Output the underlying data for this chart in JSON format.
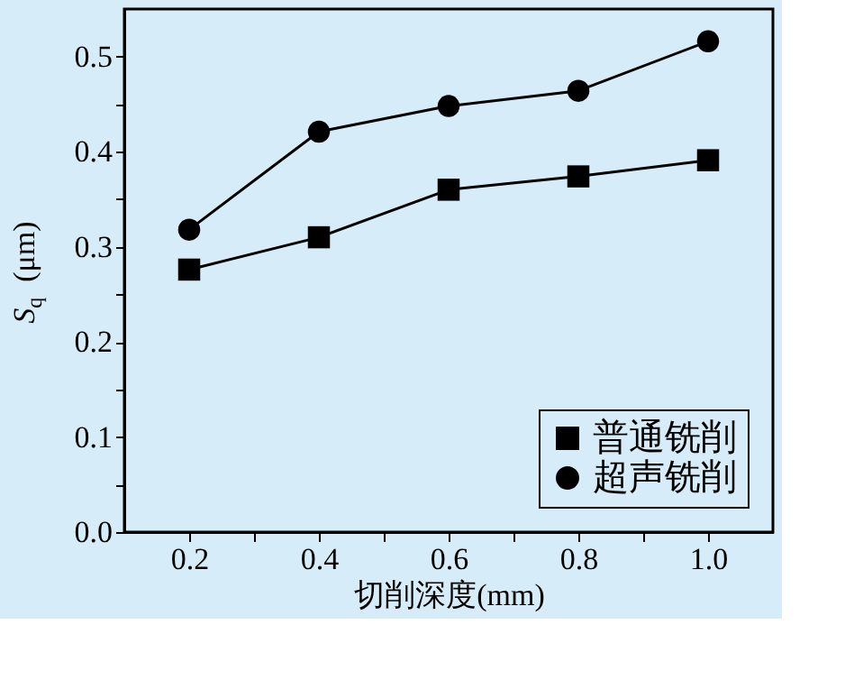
{
  "chart_data": {
    "type": "line",
    "xlabel": "切削深度(mm)",
    "ylabel": "S$_{q}$ (μm)",
    "x": [
      0.2,
      0.4,
      0.6,
      0.8,
      1.0
    ],
    "series": [
      {
        "name": "普通铣削",
        "color": "#000000",
        "marker": "square",
        "values": [
          0.276,
          0.31,
          0.36,
          0.374,
          0.391
        ]
      },
      {
        "name": "超声铣削",
        "color": "#000000",
        "marker": "circle",
        "values": [
          0.318,
          0.421,
          0.448,
          0.464,
          0.516
        ]
      }
    ],
    "xlim": [
      0.1,
      1.1
    ],
    "xticks": [
      {
        "value": 0.2,
        "label": "0.2"
      },
      {
        "value": 0.3,
        "label": null
      },
      {
        "value": 0.4,
        "label": "0.4"
      },
      {
        "value": 0.5,
        "label": null
      },
      {
        "value": 0.6,
        "label": "0.6"
      },
      {
        "value": 0.7,
        "label": null
      },
      {
        "value": 0.8,
        "label": "0.8"
      },
      {
        "value": 0.9,
        "label": null
      },
      {
        "value": 1.0,
        "label": "1.0"
      }
    ],
    "ylim": [
      0,
      0.55
    ],
    "yticks": [
      {
        "value": 0.0,
        "label": "0.0"
      },
      {
        "value": 0.05,
        "label": null
      },
      {
        "value": 0.1,
        "label": "0.1"
      },
      {
        "value": 0.15,
        "label": null
      },
      {
        "value": 0.2,
        "label": "0.2"
      },
      {
        "value": 0.25,
        "label": null
      },
      {
        "value": 0.3,
        "label": "0.3"
      },
      {
        "value": 0.35,
        "label": null
      },
      {
        "value": 0.4,
        "label": "0.4"
      },
      {
        "value": 0.45,
        "label": null
      },
      {
        "value": 0.5,
        "label": "0.5"
      }
    ],
    "grid": false,
    "legend": "bottom right",
    "line_style": "solid"
  }
}
